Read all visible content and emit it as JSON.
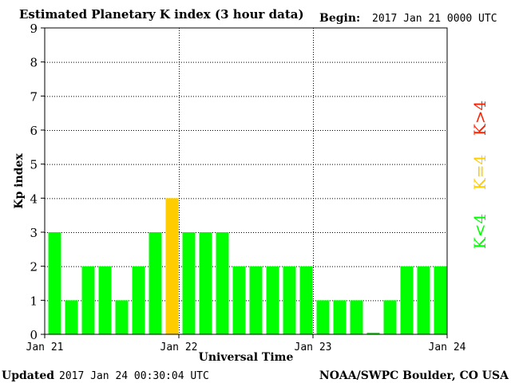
{
  "header": {
    "title": "Estimated Planetary K index (3 hour data)",
    "begin_label": "Begin:",
    "begin_value": "2017 Jan 21 0000 UTC"
  },
  "footer": {
    "updated_label": "Updated",
    "updated_value": "2017 Jan 24 00:30:04 UTC",
    "source": "NOAA/SWPC Boulder, CO USA"
  },
  "legend": {
    "high": "K>4",
    "equal": "K=4",
    "low": "K<4"
  },
  "colors": {
    "low": "#00ff00",
    "equal": "#ffcc00",
    "high": "#ff2000",
    "axis": "#000000",
    "grid": "#000000"
  },
  "chart_data": {
    "type": "bar",
    "title": "Estimated Planetary K index (3 hour data)",
    "xlabel": "Universal Time",
    "ylabel": "Kp index",
    "ylim": [
      0,
      9
    ],
    "yticks": [
      "0",
      "1",
      "2",
      "3",
      "4",
      "5",
      "6",
      "7",
      "8",
      "9"
    ],
    "xticks": [
      "Jan 21",
      "Jan 22",
      "Jan 23",
      "Jan 24"
    ],
    "grid": true,
    "values": [
      3,
      1,
      2,
      2,
      1,
      2,
      3,
      4,
      3,
      3,
      3,
      2,
      2,
      2,
      2,
      2,
      1,
      1,
      1,
      0.05,
      1,
      2,
      2,
      2
    ]
  }
}
